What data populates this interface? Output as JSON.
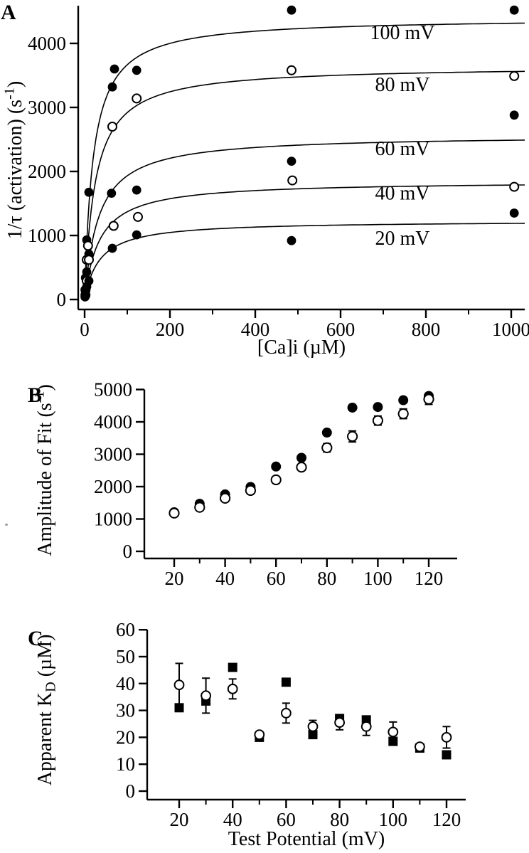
{
  "figure": {
    "background": "#ffffff",
    "ink_color": "#000000"
  },
  "chart_data": [
    {
      "panel_label": "A",
      "type": "scatter",
      "xlabel": "[Ca]i (µM)",
      "ylabel": "1/τ (activation)  (s^[-1])",
      "xlim": [
        -15,
        1032
      ],
      "ylim": [
        0,
        4590
      ],
      "xticks": [
        0,
        200,
        400,
        600,
        800,
        1000
      ],
      "xminorticks": [
        100,
        300,
        500,
        700,
        900
      ],
      "yticks": [
        0,
        1000,
        2000,
        3000,
        4000
      ],
      "grid": false,
      "legend": "inline curve labels",
      "series": [
        {
          "label": "100 mV",
          "marker": "filled-circle",
          "fit": {
            "amplitude": 4400,
            "kd_uM": 20
          },
          "points_x": [
            2,
            5,
            10,
            65,
            70,
            122,
            485,
            1007
          ],
          "points_y": [
            340,
            930,
            1675,
            3320,
            3600,
            3580,
            4520,
            4520
          ],
          "label_x": 745,
          "label_y": 4067
        },
        {
          "label": "80 mV",
          "marker": "open-circle",
          "fit": {
            "amplitude": 3650,
            "kd_uM": 25
          },
          "points_x": [
            2,
            5,
            8,
            65,
            122,
            485,
            1007
          ],
          "points_y": [
            150,
            620,
            840,
            2700,
            3140,
            3580,
            3490
          ],
          "label_x": 745,
          "label_y": 3256
        },
        {
          "label": "60 mV",
          "marker": "filled-circle",
          "fit": {
            "amplitude": 2570,
            "kd_uM": 33
          },
          "points_x": [
            2,
            5,
            10,
            63,
            122,
            485,
            1007
          ],
          "points_y": [
            90,
            430,
            710,
            1660,
            1710,
            2160,
            2880
          ],
          "label_x": 745,
          "label_y": 2256
        },
        {
          "label": "40 mV",
          "marker": "open-circle",
          "fit": {
            "amplitude": 1850,
            "kd_uM": 35
          },
          "points_x": [
            2,
            5,
            10,
            68,
            125,
            487,
            1007
          ],
          "points_y": [
            70,
            290,
            620,
            1150,
            1290,
            1860,
            1760
          ],
          "label_x": 745,
          "label_y": 1559
        },
        {
          "label": "20 mV",
          "marker": "filled-circle",
          "fit": {
            "amplitude": 1230,
            "kd_uM": 35
          },
          "points_x": [
            1,
            2,
            3,
            5,
            10,
            65,
            122,
            485,
            1007
          ],
          "points_y": [
            40,
            90,
            150,
            200,
            290,
            800,
            1010,
            920,
            1350
          ],
          "label_x": 745,
          "label_y": 856
        }
      ]
    },
    {
      "panel_label": "B",
      "type": "scatter",
      "xlabel": "",
      "ylabel": "Amplitude of Fit (s^[-1])",
      "x": [
        20,
        30,
        40,
        50,
        60,
        70,
        80,
        90,
        100,
        110,
        120
      ],
      "xticks": [
        20,
        40,
        60,
        80,
        100,
        120
      ],
      "xminorticks": [
        30,
        50,
        70,
        90,
        110
      ],
      "yticks": [
        0,
        1000,
        2000,
        3000,
        4000,
        5000
      ],
      "xlim": [
        8,
        130
      ],
      "ylim": [
        0,
        5000
      ],
      "grid": false,
      "series": [
        {
          "name": "filled circles",
          "marker": "filled-circle",
          "values": [
            1210,
            1470,
            1760,
            1990,
            2620,
            2890,
            3670,
            4440,
            4460,
            4670,
            4800
          ]
        },
        {
          "name": "open circles",
          "marker": "open-circle",
          "values": [
            1180,
            1360,
            1640,
            1880,
            2210,
            2600,
            3200,
            3550,
            4040,
            4250,
            4700
          ],
          "errors": [
            60,
            60,
            80,
            80,
            100,
            90,
            130,
            170,
            140,
            150,
            160
          ]
        }
      ]
    },
    {
      "panel_label": "C",
      "type": "scatter",
      "xlabel": "Test Potential (mV)",
      "ylabel": "Apparent K_[D] (µM)",
      "x": [
        20,
        30,
        40,
        50,
        60,
        70,
        80,
        90,
        100,
        110,
        120
      ],
      "xticks": [
        20,
        40,
        60,
        80,
        100,
        120
      ],
      "xminorticks": [
        30,
        50,
        70,
        90,
        110
      ],
      "yticks": [
        0,
        10,
        20,
        30,
        40,
        50,
        60
      ],
      "xlim": [
        8,
        126
      ],
      "ylim": [
        0,
        60
      ],
      "grid": false,
      "series": [
        {
          "name": "filled squares",
          "marker": "filled-square",
          "values": [
            31,
            33.5,
            46,
            20,
            40.5,
            21,
            27,
            26.5,
            18.5,
            16,
            13.5
          ]
        },
        {
          "name": "open circles",
          "marker": "open-circle",
          "values": [
            39.5,
            35.5,
            38,
            21,
            29,
            24,
            25.5,
            24,
            22,
            16.5,
            20
          ],
          "errors": [
            8,
            6.5,
            3.7,
            0,
            3.7,
            2.3,
            2.7,
            3.3,
            3.7,
            0,
            4
          ]
        }
      ]
    }
  ]
}
